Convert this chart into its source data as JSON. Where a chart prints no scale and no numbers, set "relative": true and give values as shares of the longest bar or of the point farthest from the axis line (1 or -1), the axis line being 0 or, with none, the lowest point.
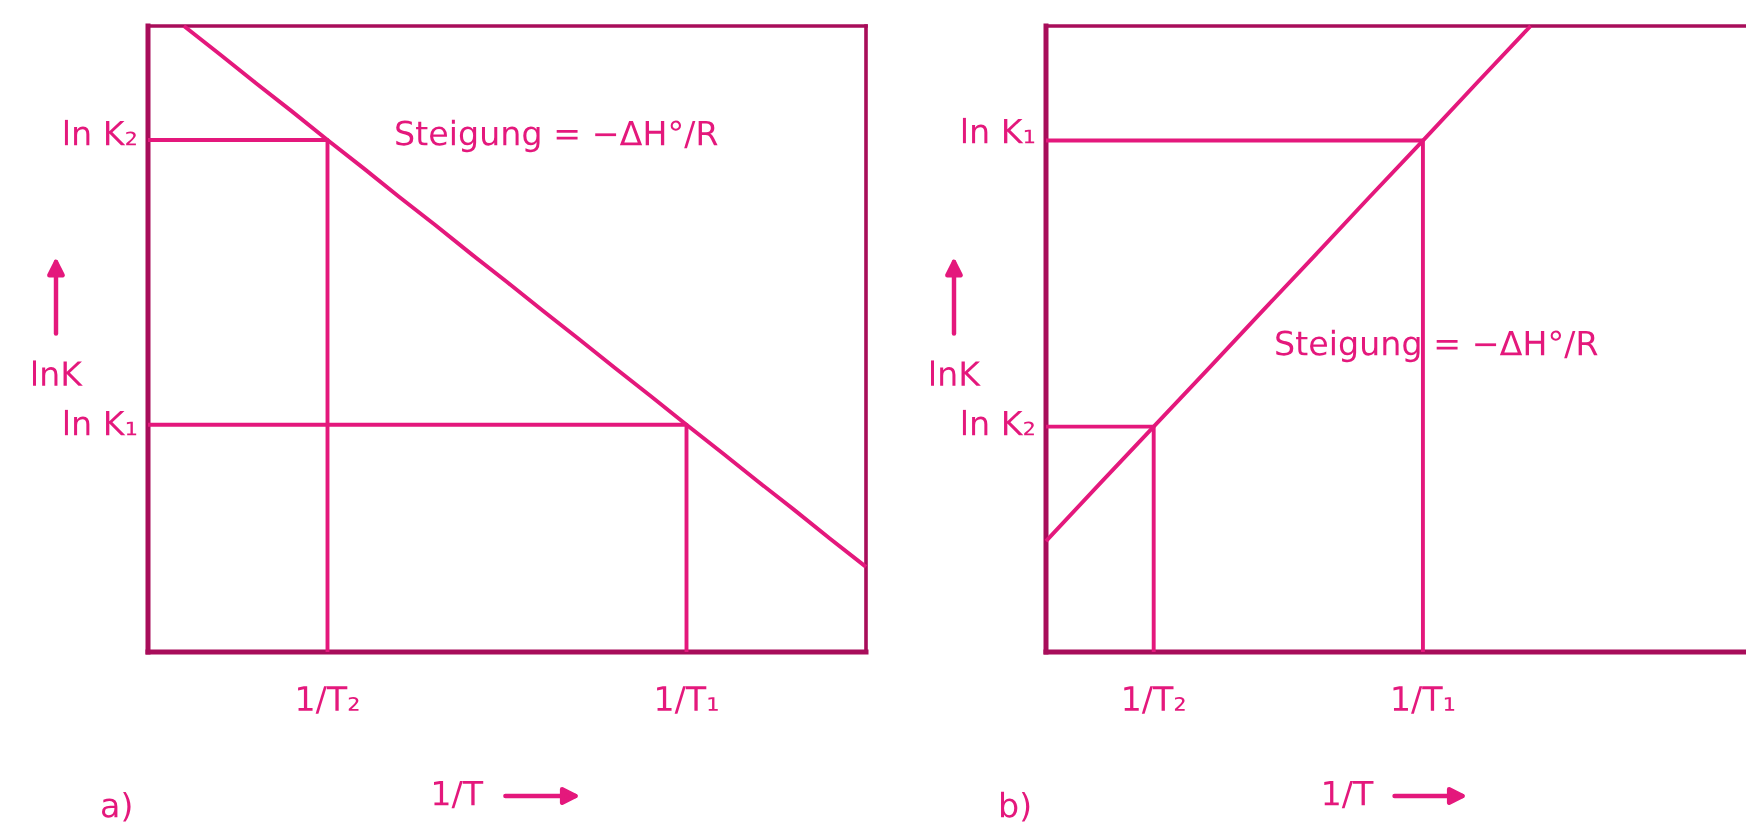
{
  "chart_data": [
    {
      "type": "line",
      "relative": true,
      "xlabel": "1/T",
      "ylabel": "lnK",
      "categories": [
        null,
        null,
        null,
        null,
        null,
        "1/T₂",
        null,
        null,
        null,
        null,
        null,
        null,
        null,
        null,
        null,
        "1/T₁",
        null,
        null,
        null,
        null,
        null
      ],
      "series": [
        {
          "color": "#e4187c",
          "values": [
            null,
            1.0,
            0.955,
            0.909,
            0.864,
            0.818,
            0.773,
            0.727,
            0.682,
            0.636,
            0.591,
            0.545,
            0.5,
            0.454,
            0.409,
            0.363,
            0.318,
            0.272,
            0.227,
            0.181,
            0.136
          ]
        },
        {
          "type": "step",
          "color": "#e4187c",
          "values": [
            0.818,
            0.818,
            0.818,
            0.818,
            0.818,
            0,
            null,
            null,
            null,
            null,
            null,
            null,
            null,
            null,
            null,
            null,
            null,
            null,
            null,
            null,
            null
          ]
        },
        {
          "type": "step",
          "color": "#e4187c",
          "values": [
            0.363,
            0.363,
            0.363,
            0.363,
            0.363,
            0.363,
            0.363,
            0.363,
            0.363,
            0.363,
            0.363,
            0.363,
            0.363,
            0.363,
            0.363,
            0,
            null,
            null,
            null,
            null,
            null
          ]
        }
      ],
      "annotations": [
        "ln K₂",
        "ln K₁",
        "Steigung = −ΔH°/R",
        "a)"
      ]
    },
    {
      "type": "line",
      "relative": true,
      "xlabel": "1/T",
      "ylabel": "lnK",
      "categories": [
        null,
        null,
        "1/T₂",
        null,
        null,
        null,
        null,
        "1/T₁",
        null,
        null,
        null,
        null,
        null,
        null
      ],
      "series": [
        {
          "color": "#e4187c",
          "values": [
            0.177,
            0.269,
            0.36,
            0.451,
            0.543,
            0.634,
            0.726,
            0.817,
            0.909,
            1.0,
            null,
            null,
            null,
            null
          ]
        },
        {
          "type": "step",
          "color": "#e4187c",
          "values": [
            0.36,
            0.36,
            0,
            null,
            null,
            null,
            null,
            null,
            null,
            null,
            null,
            null,
            null,
            null
          ]
        },
        {
          "type": "step",
          "color": "#e4187c",
          "values": [
            0.817,
            0.817,
            0.817,
            0.817,
            0.817,
            0.817,
            0.817,
            0,
            null,
            null,
            null,
            null,
            null,
            null
          ]
        }
      ],
      "annotations": [
        "ln K₁",
        "ln K₂",
        "Steigung = −ΔH°/R",
        "b)"
      ]
    }
  ]
}
